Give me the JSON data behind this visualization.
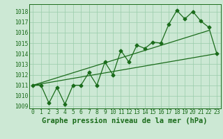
{
  "title": "Graphe pression niveau de la mer (hPa)",
  "x_labels": [
    "0",
    "1",
    "2",
    "3",
    "4",
    "5",
    "6",
    "7",
    "8",
    "9",
    "10",
    "11",
    "12",
    "13",
    "14",
    "15",
    "16",
    "17",
    "18",
    "19",
    "20",
    "21",
    "22",
    "23"
  ],
  "ylim": [
    1008.8,
    1018.7
  ],
  "yticks": [
    1009,
    1010,
    1011,
    1012,
    1013,
    1014,
    1015,
    1016,
    1017,
    1018
  ],
  "pressure_data": [
    1011.0,
    1011.0,
    1009.3,
    1010.8,
    1009.2,
    1011.0,
    1011.0,
    1012.2,
    1011.0,
    1013.2,
    1012.0,
    1014.3,
    1013.2,
    1014.8,
    1014.5,
    1015.1,
    1015.0,
    1016.8,
    1018.1,
    1017.3,
    1018.0,
    1017.1,
    1016.5,
    1014.0
  ],
  "lo_line": [
    [
      0,
      23
    ],
    [
      1011.0,
      1014.0
    ]
  ],
  "hi_line": [
    [
      0,
      22
    ],
    [
      1011.0,
      1016.2
    ]
  ],
  "line_color": "#1a6b1a",
  "bg_color": "#cce8d4",
  "grid_color": "#99ccaa",
  "marker": "D",
  "marker_size": 2.5,
  "title_fontsize": 7.5,
  "tick_fontsize": 5.8,
  "lw": 0.9
}
